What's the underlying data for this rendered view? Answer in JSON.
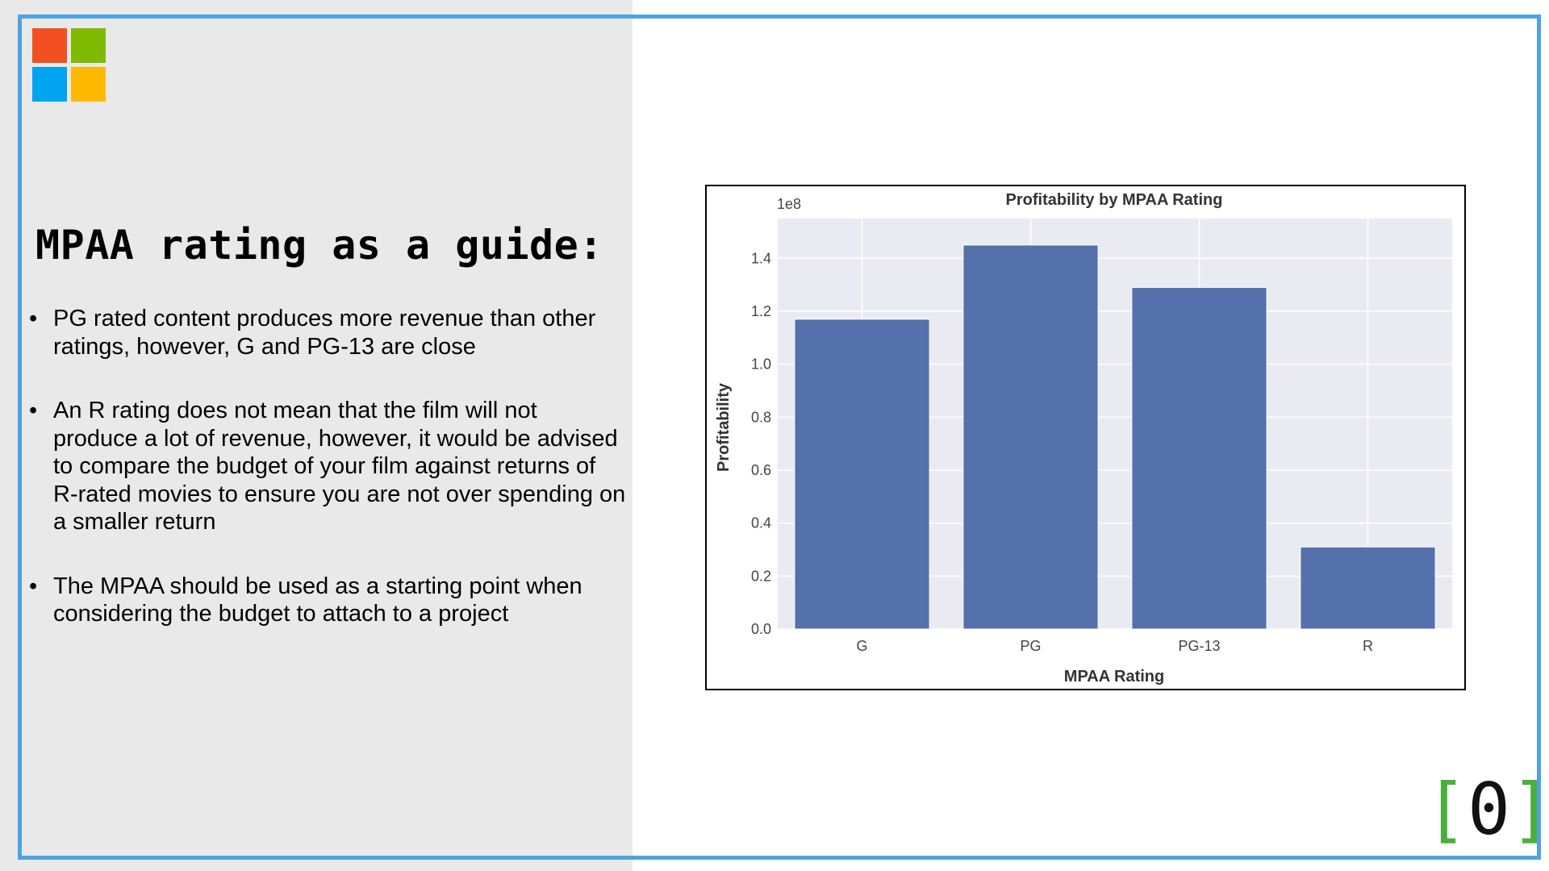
{
  "slide": {
    "heading": "MPAA rating as a guide:",
    "bullets": [
      "PG rated content produces more revenue than other ratings, however, G and PG-13 are close",
      "An R rating does not mean that the film will not produce a lot of revenue, however, it would be advised to compare the budget of your film against returns of R-rated movies to ensure you are not over spending on a smaller return",
      "The MPAA should be used as a starting point when considering the budget to attach to a project"
    ],
    "logo": {
      "icon": "microsoft-logo-icon",
      "colors": [
        "#f25022",
        "#7fba00",
        "#00a4ef",
        "#ffb900"
      ]
    },
    "corner_badge": {
      "open": "[",
      "value": "0",
      "close": "]"
    },
    "colors": {
      "frame": "#4ea3e3",
      "left_panel": "#e9e9e9",
      "bar": "#5471ab",
      "plot_bg": "#eaeaf2",
      "badge_bracket": "#4caf3c"
    }
  },
  "chart_data": {
    "type": "bar",
    "title": "Profitability by MPAA Rating",
    "xlabel": "MPAA Rating",
    "ylabel": "Profitability",
    "scale_label": "1e8",
    "categories": [
      "G",
      "PG",
      "PG-13",
      "R"
    ],
    "values": [
      117000000,
      145000000,
      129000000,
      31000000
    ],
    "ylim": [
      0,
      155000000
    ],
    "yticks": [
      0,
      20000000,
      40000000,
      60000000,
      80000000,
      100000000,
      120000000,
      140000000
    ],
    "ytick_labels": [
      "0.0",
      "0.2",
      "0.4",
      "0.6",
      "0.8",
      "1.0",
      "1.2",
      "1.4"
    ],
    "grid": true,
    "legend": "none"
  }
}
